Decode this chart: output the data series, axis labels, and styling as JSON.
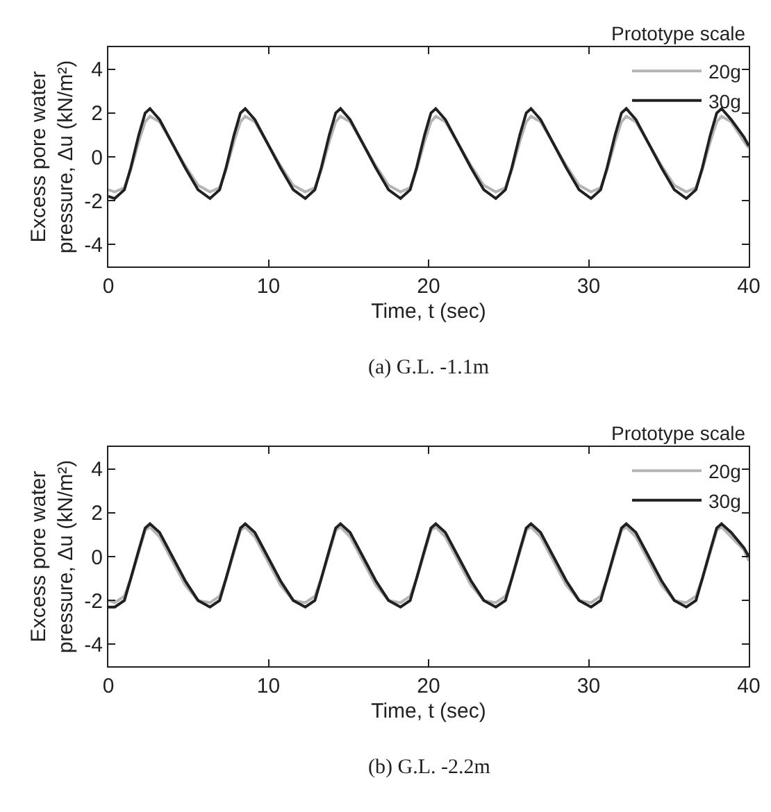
{
  "chart_data": [
    {
      "type": "line",
      "xlabel": "Time, t (sec)",
      "ylabel": "Excess pore water pressure, Δu (kN/m²)",
      "legend_title": "Prototype scale",
      "legend": "top right",
      "grid": false,
      "marker": "none",
      "line_style": "solid",
      "xlim": [
        0,
        40
      ],
      "xticks": [
        0,
        10,
        20,
        30,
        40
      ],
      "ylim": [
        -5,
        5
      ],
      "yticks": [
        -4,
        -2,
        0,
        2,
        4
      ],
      "annotations": [
        "(a) G.L. -1.1m"
      ],
      "x": [
        0,
        0.4,
        1.0,
        1.4,
        1.9,
        2.3,
        2.6,
        3.2,
        4.0,
        4.8,
        5.6,
        6.35,
        6.95,
        7.35,
        7.85,
        8.25,
        8.55,
        9.15,
        9.95,
        10.75,
        11.55,
        12.3,
        12.9,
        13.3,
        13.8,
        14.2,
        14.5,
        15.1,
        15.9,
        16.7,
        17.5,
        18.25,
        18.85,
        19.25,
        19.75,
        20.15,
        20.45,
        21.05,
        21.85,
        22.65,
        23.45,
        24.2,
        24.8,
        25.2,
        25.7,
        26.1,
        26.4,
        27.0,
        27.8,
        28.6,
        29.4,
        30.15,
        30.75,
        31.15,
        31.65,
        32.05,
        32.35,
        32.95,
        33.75,
        34.55,
        35.35,
        36.1,
        36.7,
        37.1,
        37.6,
        38.0,
        38.3,
        38.9,
        39.7,
        40
      ],
      "series": [
        {
          "name": "20g",
          "color": "#b4b4b4",
          "values": [
            -1.5,
            -1.6,
            -1.4,
            -0.6,
            0.7,
            1.6,
            1.85,
            1.6,
            0.6,
            -0.4,
            -1.3,
            -1.6,
            -1.4,
            -0.6,
            0.7,
            1.6,
            1.85,
            1.6,
            0.6,
            -0.4,
            -1.3,
            -1.6,
            -1.4,
            -0.6,
            0.7,
            1.6,
            1.85,
            1.6,
            0.6,
            -0.4,
            -1.3,
            -1.6,
            -1.4,
            -0.6,
            0.7,
            1.6,
            1.85,
            1.6,
            0.6,
            -0.4,
            -1.3,
            -1.6,
            -1.4,
            -0.6,
            0.7,
            1.6,
            1.85,
            1.6,
            0.6,
            -0.4,
            -1.3,
            -1.6,
            -1.4,
            -0.6,
            0.7,
            1.6,
            1.85,
            1.6,
            0.6,
            -0.4,
            -1.3,
            -1.6,
            -1.4,
            -0.6,
            0.7,
            1.6,
            1.85,
            1.6,
            0.7,
            0.4
          ]
        },
        {
          "name": "30g",
          "color": "#231f20",
          "values": [
            -1.8,
            -1.9,
            -1.5,
            -0.5,
            1.0,
            2.0,
            2.2,
            1.7,
            0.6,
            -0.5,
            -1.5,
            -1.9,
            -1.5,
            -0.5,
            1.0,
            2.0,
            2.2,
            1.7,
            0.6,
            -0.5,
            -1.5,
            -1.9,
            -1.5,
            -0.5,
            1.0,
            2.0,
            2.2,
            1.7,
            0.6,
            -0.5,
            -1.5,
            -1.9,
            -1.5,
            -0.5,
            1.0,
            2.0,
            2.2,
            1.7,
            0.6,
            -0.5,
            -1.5,
            -1.9,
            -1.5,
            -0.5,
            1.0,
            2.0,
            2.2,
            1.7,
            0.6,
            -0.5,
            -1.5,
            -1.9,
            -1.5,
            -0.5,
            1.0,
            2.0,
            2.2,
            1.7,
            0.6,
            -0.5,
            -1.5,
            -1.9,
            -1.5,
            -0.5,
            1.0,
            2.0,
            2.2,
            1.7,
            0.9,
            0.5
          ]
        }
      ]
    },
    {
      "type": "line",
      "xlabel": "Time, t (sec)",
      "ylabel": "Excess pore water pressure, Δu (kN/m²)",
      "legend_title": "Prototype scale",
      "legend": "top right",
      "grid": false,
      "marker": "none",
      "line_style": "solid",
      "xlim": [
        0,
        40
      ],
      "xticks": [
        0,
        10,
        20,
        30,
        40
      ],
      "ylim": [
        -5,
        5
      ],
      "yticks": [
        -4,
        -2,
        0,
        2,
        4
      ],
      "annotations": [
        "(b) G.L. -2.2m"
      ],
      "x": [
        0,
        0.4,
        1.0,
        1.4,
        1.9,
        2.3,
        2.6,
        3.2,
        4.0,
        4.8,
        5.6,
        6.35,
        6.95,
        7.35,
        7.85,
        8.25,
        8.55,
        9.15,
        9.95,
        10.75,
        11.55,
        12.3,
        12.9,
        13.3,
        13.8,
        14.2,
        14.5,
        15.1,
        15.9,
        16.7,
        17.5,
        18.25,
        18.85,
        19.25,
        19.75,
        20.15,
        20.45,
        21.05,
        21.85,
        22.65,
        23.45,
        24.2,
        24.8,
        25.2,
        25.7,
        26.1,
        26.4,
        27.0,
        27.8,
        28.6,
        29.4,
        30.15,
        30.75,
        31.15,
        31.65,
        32.05,
        32.35,
        32.95,
        33.75,
        34.55,
        35.35,
        36.1,
        36.7,
        37.1,
        37.6,
        38.0,
        38.3,
        38.9,
        39.7,
        40
      ],
      "series": [
        {
          "name": "20g",
          "color": "#b4b4b4",
          "values": [
            -2.0,
            -2.1,
            -1.8,
            -1.0,
            0.2,
            1.2,
            1.35,
            0.9,
            -0.2,
            -1.3,
            -2.0,
            -2.1,
            -1.8,
            -1.0,
            0.2,
            1.2,
            1.35,
            0.9,
            -0.2,
            -1.3,
            -2.0,
            -2.1,
            -1.8,
            -1.0,
            0.2,
            1.2,
            1.35,
            0.9,
            -0.2,
            -1.3,
            -2.0,
            -2.1,
            -1.8,
            -1.0,
            0.2,
            1.2,
            1.35,
            0.9,
            -0.2,
            -1.3,
            -2.0,
            -2.1,
            -1.8,
            -1.0,
            0.2,
            1.2,
            1.35,
            0.9,
            -0.2,
            -1.3,
            -2.0,
            -2.1,
            -1.8,
            -1.0,
            0.2,
            1.2,
            1.35,
            0.9,
            -0.2,
            -1.3,
            -2.0,
            -2.1,
            -1.8,
            -1.0,
            0.2,
            1.2,
            1.35,
            0.9,
            0.3,
            -0.2
          ]
        },
        {
          "name": "30g",
          "color": "#231f20",
          "values": [
            -2.3,
            -2.3,
            -2.0,
            -1.0,
            0.3,
            1.3,
            1.5,
            1.1,
            0.0,
            -1.1,
            -2.0,
            -2.3,
            -2.0,
            -1.0,
            0.3,
            1.3,
            1.5,
            1.1,
            0.0,
            -1.1,
            -2.0,
            -2.3,
            -2.0,
            -1.0,
            0.3,
            1.3,
            1.5,
            1.1,
            0.0,
            -1.1,
            -2.0,
            -2.3,
            -2.0,
            -1.0,
            0.3,
            1.3,
            1.5,
            1.1,
            0.0,
            -1.1,
            -2.0,
            -2.3,
            -2.0,
            -1.0,
            0.3,
            1.3,
            1.5,
            1.1,
            0.0,
            -1.1,
            -2.0,
            -2.3,
            -2.0,
            -1.0,
            0.3,
            1.3,
            1.5,
            1.1,
            0.0,
            -1.1,
            -2.0,
            -2.3,
            -2.0,
            -1.0,
            0.3,
            1.3,
            1.5,
            1.1,
            0.4,
            0.0
          ]
        }
      ]
    }
  ]
}
